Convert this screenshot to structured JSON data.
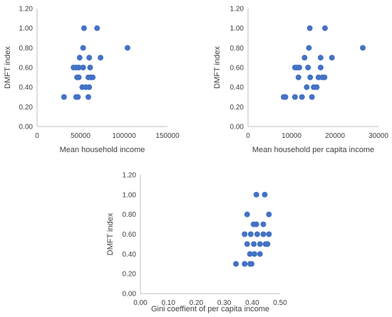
{
  "chart_data": [
    {
      "type": "scatter",
      "xlabel": "Mean household income",
      "ylabel": "DMFT index",
      "xlim": [
        0,
        150000
      ],
      "ylim": [
        0,
        1.2
      ],
      "xticks": [
        "0",
        "50000",
        "100000",
        "150000"
      ],
      "yticks": [
        "0.00",
        "0.20",
        "0.40",
        "0.60",
        "0.80",
        "1.00",
        "1.20"
      ],
      "marker_color": "#4472c4",
      "points": [
        {
          "x": 54000,
          "y": 1.0
        },
        {
          "x": 69000,
          "y": 1.0
        },
        {
          "x": 53000,
          "y": 0.8
        },
        {
          "x": 104000,
          "y": 0.8
        },
        {
          "x": 49000,
          "y": 0.7
        },
        {
          "x": 60000,
          "y": 0.7
        },
        {
          "x": 73000,
          "y": 0.7
        },
        {
          "x": 42000,
          "y": 0.6
        },
        {
          "x": 45000,
          "y": 0.6
        },
        {
          "x": 48000,
          "y": 0.6
        },
        {
          "x": 53000,
          "y": 0.6
        },
        {
          "x": 61000,
          "y": 0.6
        },
        {
          "x": 46000,
          "y": 0.5
        },
        {
          "x": 48000,
          "y": 0.5
        },
        {
          "x": 59000,
          "y": 0.5
        },
        {
          "x": 62000,
          "y": 0.5
        },
        {
          "x": 64000,
          "y": 0.5
        },
        {
          "x": 52000,
          "y": 0.4
        },
        {
          "x": 56000,
          "y": 0.4
        },
        {
          "x": 60000,
          "y": 0.4
        },
        {
          "x": 31000,
          "y": 0.3
        },
        {
          "x": 45000,
          "y": 0.3
        },
        {
          "x": 47000,
          "y": 0.3
        },
        {
          "x": 59000,
          "y": 0.3
        }
      ]
    },
    {
      "type": "scatter",
      "xlabel": "Mean household per capita income",
      "ylabel": "DMFT index",
      "xlim": [
        0,
        30000
      ],
      "ylim": [
        0,
        1.2
      ],
      "xticks": [
        "0",
        "10000",
        "20000",
        "30000"
      ],
      "yticks": [
        "0.00",
        "0.20",
        "0.40",
        "0.60",
        "0.80",
        "1.00",
        "1.20"
      ],
      "marker_color": "#4472c4",
      "points": [
        {
          "x": 14200,
          "y": 1.0
        },
        {
          "x": 17700,
          "y": 1.0
        },
        {
          "x": 14000,
          "y": 0.8
        },
        {
          "x": 26400,
          "y": 0.8
        },
        {
          "x": 13000,
          "y": 0.7
        },
        {
          "x": 16700,
          "y": 0.7
        },
        {
          "x": 19300,
          "y": 0.7
        },
        {
          "x": 10800,
          "y": 0.6
        },
        {
          "x": 11300,
          "y": 0.6
        },
        {
          "x": 11800,
          "y": 0.6
        },
        {
          "x": 13800,
          "y": 0.6
        },
        {
          "x": 16700,
          "y": 0.6
        },
        {
          "x": 11600,
          "y": 0.5
        },
        {
          "x": 14300,
          "y": 0.5
        },
        {
          "x": 16200,
          "y": 0.5
        },
        {
          "x": 17100,
          "y": 0.5
        },
        {
          "x": 17600,
          "y": 0.5
        },
        {
          "x": 13500,
          "y": 0.4
        },
        {
          "x": 15100,
          "y": 0.4
        },
        {
          "x": 15800,
          "y": 0.4
        },
        {
          "x": 8200,
          "y": 0.3
        },
        {
          "x": 8600,
          "y": 0.3
        },
        {
          "x": 10800,
          "y": 0.3
        },
        {
          "x": 12400,
          "y": 0.3
        },
        {
          "x": 14700,
          "y": 0.3
        }
      ]
    },
    {
      "type": "scatter",
      "xlabel": "Gini coeffient of per capita income",
      "ylabel": "DMFT index",
      "xlim": [
        0,
        0.5
      ],
      "ylim": [
        0,
        1.2
      ],
      "xticks": [
        "0.00",
        "0.10",
        "0.20",
        "0.30",
        "0.40",
        "0.50"
      ],
      "yticks": [
        "0.00",
        "0.20",
        "0.40",
        "0.60",
        "0.80",
        "1.00",
        "1.20"
      ],
      "marker_color": "#4472c4",
      "points": [
        {
          "x": 0.415,
          "y": 1.0
        },
        {
          "x": 0.445,
          "y": 1.0
        },
        {
          "x": 0.382,
          "y": 0.8
        },
        {
          "x": 0.46,
          "y": 0.8
        },
        {
          "x": 0.405,
          "y": 0.7
        },
        {
          "x": 0.415,
          "y": 0.7
        },
        {
          "x": 0.44,
          "y": 0.7
        },
        {
          "x": 0.373,
          "y": 0.6
        },
        {
          "x": 0.395,
          "y": 0.6
        },
        {
          "x": 0.418,
          "y": 0.6
        },
        {
          "x": 0.44,
          "y": 0.6
        },
        {
          "x": 0.46,
          "y": 0.6
        },
        {
          "x": 0.382,
          "y": 0.5
        },
        {
          "x": 0.406,
          "y": 0.5
        },
        {
          "x": 0.428,
          "y": 0.5
        },
        {
          "x": 0.448,
          "y": 0.5
        },
        {
          "x": 0.455,
          "y": 0.5
        },
        {
          "x": 0.392,
          "y": 0.4
        },
        {
          "x": 0.408,
          "y": 0.4
        },
        {
          "x": 0.428,
          "y": 0.4
        },
        {
          "x": 0.342,
          "y": 0.3
        },
        {
          "x": 0.373,
          "y": 0.3
        },
        {
          "x": 0.393,
          "y": 0.3
        },
        {
          "x": 0.398,
          "y": 0.3
        }
      ]
    }
  ]
}
